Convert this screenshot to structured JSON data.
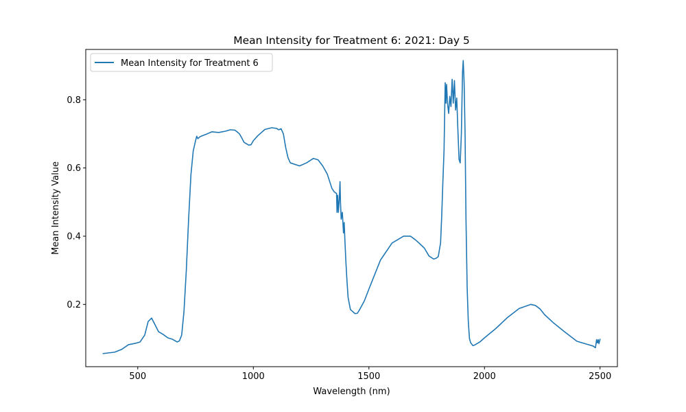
{
  "chart_data": {
    "type": "line",
    "title": "Mean Intensity for Treatment 6: 2021: Day 5",
    "xlabel": "Wavelength (nm)",
    "ylabel": "Mean Intensity Value",
    "xlim": [
      275,
      2575
    ],
    "ylim": [
      0.0175,
      0.9475
    ],
    "xticks": [
      500,
      1000,
      1500,
      2000,
      2500
    ],
    "yticks": [
      0.2,
      0.4,
      0.6,
      0.8
    ],
    "xtick_labels": [
      "500",
      "1000",
      "1500",
      "2000",
      "2500"
    ],
    "ytick_labels": [
      "0.2",
      "0.4",
      "0.6",
      "0.8"
    ],
    "grid": false,
    "legend": {
      "position": "top-left"
    },
    "color": "#1f77b4",
    "series": [
      {
        "name": "Mean Intensity for Treatment 6",
        "x": [
          350,
          400,
          430,
          460,
          490,
          510,
          530,
          545,
          560,
          575,
          590,
          610,
          630,
          650,
          670,
          680,
          690,
          700,
          710,
          720,
          730,
          740,
          750,
          755,
          760,
          770,
          800,
          820,
          850,
          880,
          900,
          920,
          930,
          940,
          950,
          960,
          980,
          990,
          1000,
          1020,
          1050,
          1080,
          1100,
          1110,
          1120,
          1130,
          1140,
          1150,
          1160,
          1200,
          1230,
          1260,
          1280,
          1300,
          1320,
          1340,
          1350,
          1360,
          1362,
          1365,
          1368,
          1372,
          1375,
          1377,
          1380,
          1385,
          1390,
          1393,
          1396,
          1400,
          1405,
          1410,
          1420,
          1440,
          1450,
          1460,
          1480,
          1500,
          1550,
          1600,
          1650,
          1680,
          1700,
          1720,
          1740,
          1760,
          1780,
          1790,
          1800,
          1810,
          1815,
          1820,
          1825,
          1830,
          1833,
          1836,
          1840,
          1845,
          1850,
          1855,
          1860,
          1865,
          1870,
          1875,
          1880,
          1885,
          1890,
          1895,
          1900,
          1905,
          1908,
          1912,
          1916,
          1920,
          1925,
          1930,
          1935,
          1940,
          1950,
          1960,
          1980,
          2000,
          2050,
          2100,
          2150,
          2200,
          2220,
          2240,
          2260,
          2300,
          2350,
          2400,
          2450,
          2470,
          2480,
          2485,
          2488,
          2490,
          2492,
          2495,
          2500
        ],
        "y": [
          0.056,
          0.06,
          0.068,
          0.082,
          0.086,
          0.09,
          0.11,
          0.15,
          0.16,
          0.14,
          0.12,
          0.112,
          0.102,
          0.098,
          0.09,
          0.093,
          0.11,
          0.18,
          0.3,
          0.45,
          0.58,
          0.65,
          0.68,
          0.693,
          0.686,
          0.692,
          0.7,
          0.706,
          0.704,
          0.708,
          0.712,
          0.711,
          0.706,
          0.7,
          0.688,
          0.675,
          0.667,
          0.668,
          0.68,
          0.695,
          0.713,
          0.718,
          0.716,
          0.712,
          0.715,
          0.7,
          0.66,
          0.63,
          0.615,
          0.606,
          0.615,
          0.628,
          0.624,
          0.606,
          0.582,
          0.54,
          0.53,
          0.525,
          0.47,
          0.52,
          0.47,
          0.51,
          0.56,
          0.5,
          0.45,
          0.47,
          0.41,
          0.44,
          0.39,
          0.33,
          0.27,
          0.22,
          0.185,
          0.173,
          0.174,
          0.185,
          0.21,
          0.245,
          0.33,
          0.38,
          0.4,
          0.4,
          0.39,
          0.378,
          0.365,
          0.342,
          0.333,
          0.335,
          0.34,
          0.38,
          0.46,
          0.56,
          0.65,
          0.85,
          0.79,
          0.845,
          0.79,
          0.76,
          0.81,
          0.78,
          0.86,
          0.79,
          0.856,
          0.77,
          0.805,
          0.71,
          0.625,
          0.615,
          0.7,
          0.88,
          0.915,
          0.85,
          0.7,
          0.45,
          0.25,
          0.15,
          0.1,
          0.088,
          0.079,
          0.082,
          0.09,
          0.102,
          0.13,
          0.162,
          0.188,
          0.2,
          0.197,
          0.187,
          0.17,
          0.145,
          0.118,
          0.092,
          0.082,
          0.078,
          0.073,
          0.097,
          0.087,
          0.09,
          0.097,
          0.085,
          0.098
        ]
      }
    ]
  }
}
